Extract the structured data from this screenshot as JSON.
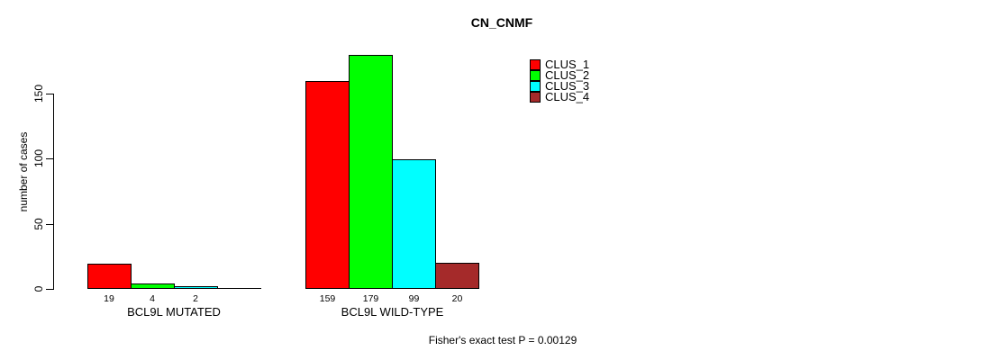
{
  "chart_data": {
    "type": "bar",
    "title": "CN_CNMF",
    "ylabel": "number of cases",
    "xlabel": "",
    "groups": [
      "BCL9L MUTATED",
      "BCL9L WILD-TYPE"
    ],
    "series": [
      {
        "name": "CLUS_1",
        "color": "#ff0000",
        "values": [
          19,
          159
        ]
      },
      {
        "name": "CLUS_2",
        "color": "#00ff00",
        "values": [
          4,
          179
        ]
      },
      {
        "name": "CLUS_3",
        "color": "#00ffff",
        "values": [
          2,
          99
        ]
      },
      {
        "name": "CLUS_4",
        "color": "#a52a2a",
        "values": [
          0,
          20
        ]
      }
    ],
    "bar_labels": [
      [
        "19",
        "4",
        "2",
        ""
      ],
      [
        "159",
        "179",
        "99",
        "20"
      ]
    ],
    "yticks": [
      0,
      50,
      100,
      150
    ],
    "ylim": [
      0,
      186
    ],
    "grid": false,
    "legend_position": "top-right",
    "annotation": "Fisher's exact test P = 0.00129"
  }
}
